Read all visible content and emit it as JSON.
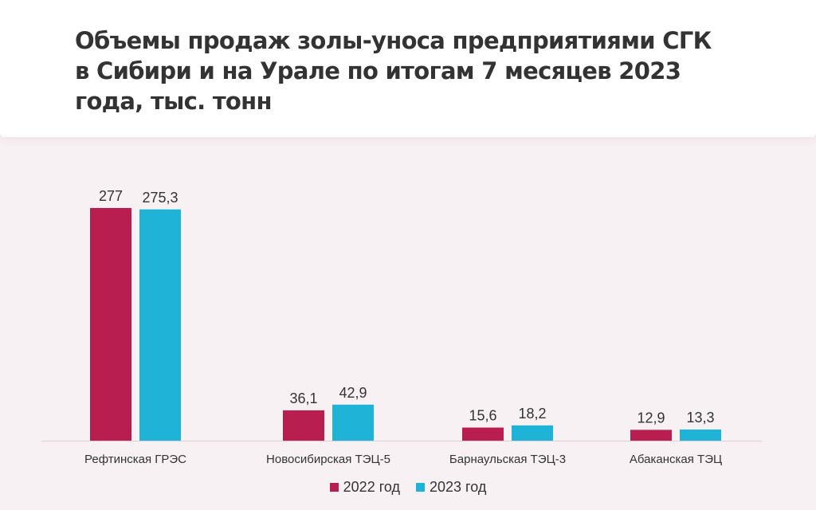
{
  "title": "Объемы продаж золы-уноса предприятиями СГК в Сибири и на Урале по итогам 7 месяцев 2023 года, тыс. тонн",
  "colors": {
    "series_2022": "#b81e50",
    "series_2023": "#1fb3d7",
    "axis": "#d8d0d4",
    "text": "#333333"
  },
  "chart_data": {
    "type": "bar",
    "title": "Объемы продаж золы-уноса предприятиями СГК в Сибири и на Урале по итогам 7 месяцев 2023 года, тыс. тонн",
    "xlabel": "",
    "ylabel": "",
    "categories": [
      "Рефтинская ГРЭС",
      "Новосибирская ТЭЦ-5",
      "Барнаульская ТЭЦ-3",
      "Абаканская ТЭЦ"
    ],
    "series": [
      {
        "name": "2022 год",
        "color": "#b81e50",
        "values": [
          277,
          36.1,
          15.6,
          12.9
        ],
        "labels": [
          "277",
          "36,1",
          "15,6",
          "12,9"
        ]
      },
      {
        "name": "2023 год",
        "color": "#1fb3d7",
        "values": [
          275.3,
          42.9,
          18.2,
          13.3
        ],
        "labels": [
          "275,3",
          "42,9",
          "18,2",
          "13,3"
        ]
      }
    ],
    "ylim": [
      0,
      277
    ],
    "grid": false,
    "legend_position": "bottom-center"
  },
  "legend": {
    "items": [
      {
        "label": "2022 год",
        "color": "#b81e50"
      },
      {
        "label": "2023 год",
        "color": "#1fb3d7"
      }
    ]
  }
}
